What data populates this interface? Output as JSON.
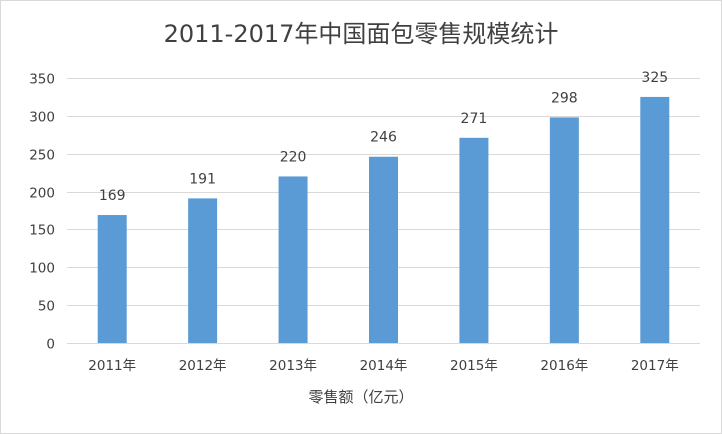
{
  "chart_data": {
    "type": "bar",
    "title": "2011-2017年中国面包零售规模统计",
    "xlabel": "零售额（亿元）",
    "ylabel": "",
    "categories": [
      "2011年",
      "2012年",
      "2013年",
      "2014年",
      "2015年",
      "2016年",
      "2017年"
    ],
    "values": [
      169,
      191,
      220,
      246,
      271,
      298,
      325
    ],
    "ylim": [
      0,
      350
    ],
    "yticks": [
      0,
      50,
      100,
      150,
      200,
      250,
      300,
      350
    ],
    "grid": true,
    "legend": "none",
    "bar_color": "#5b9bd5",
    "grid_color": "#d9d9d9"
  }
}
